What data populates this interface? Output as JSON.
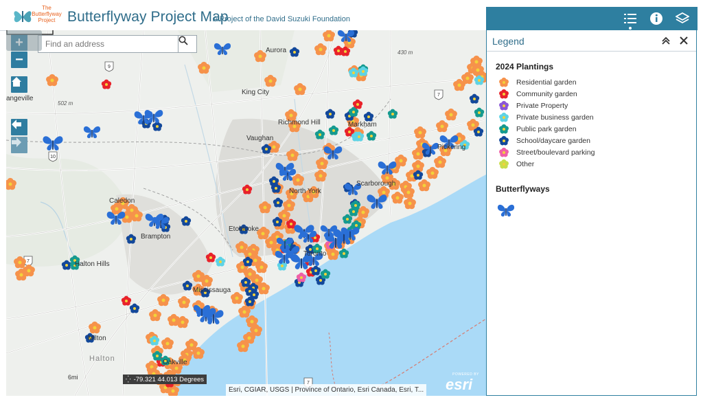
{
  "header": {
    "logo_text": "The Butterflyway Project",
    "title": "Butterflyway Project Map",
    "subtitle": "A Project of the David Suzuki Foundation"
  },
  "toolbar": {
    "buttons": [
      {
        "icon": "list-icon",
        "active": true
      },
      {
        "icon": "info-icon"
      },
      {
        "icon": "layers-icon"
      }
    ]
  },
  "legend": {
    "title": "Legend",
    "plantings_title": "2024 Plantings",
    "plantings": [
      {
        "label": "Residential garden",
        "color": "#f6924b"
      },
      {
        "label": "Community garden",
        "color": "#e8222a"
      },
      {
        "label": "Private Property",
        "color": "#8a56d6"
      },
      {
        "label": "Private business garden",
        "color": "#5ed3e5"
      },
      {
        "label": "Public park garden",
        "color": "#159a8f"
      },
      {
        "label": "School/daycare garden",
        "color": "#13489a"
      },
      {
        "label": "Street/boulevard parking",
        "color": "#ef5fa6"
      },
      {
        "label": "Other",
        "color": "#c9dd4a"
      }
    ],
    "butterflyways_title": "Butterflyways",
    "butterfly_color": "#2a6fd6"
  },
  "map": {
    "search_placeholder": "Find an address",
    "zoom_in": "+",
    "zoom_out": "−",
    "labels": [
      {
        "text": "Aurora",
        "type": "town"
      },
      {
        "text": "430 m",
        "type": "elev"
      },
      {
        "text": "King City",
        "type": "town"
      },
      {
        "text": "angeville",
        "type": "town"
      },
      {
        "text": "502 m",
        "type": "elev"
      },
      {
        "text": "Richmond Hill",
        "type": "town"
      },
      {
        "text": "Markham",
        "type": "town"
      },
      {
        "text": "Vaughan",
        "type": "town"
      },
      {
        "text": "North York",
        "type": "town"
      },
      {
        "text": "Scarborough",
        "type": "town"
      },
      {
        "text": "Caledon",
        "type": "town"
      },
      {
        "text": "Etobicoke",
        "type": "town"
      },
      {
        "text": "Brampton",
        "type": "town"
      },
      {
        "text": "Toronto",
        "type": "town"
      },
      {
        "text": "Halton Hills",
        "type": "town"
      },
      {
        "text": "Mississauga",
        "type": "town"
      },
      {
        "text": "Milton",
        "type": "town"
      },
      {
        "text": "Halton",
        "type": "region"
      },
      {
        "text": "Oakville",
        "type": "town"
      },
      {
        "text": "Pickering",
        "type": "town"
      }
    ],
    "road_shields": [
      "9",
      "7",
      "10",
      "7",
      "7"
    ],
    "scale_label": "6mi",
    "coordinates": "-79.321 44.013 Degrees",
    "attribution": "Esri, CGIAR, USGS | Province of Ontario, Esri Canada, Esri, T...",
    "esri_powered": "POWERED BY",
    "esri_word": "esri"
  }
}
